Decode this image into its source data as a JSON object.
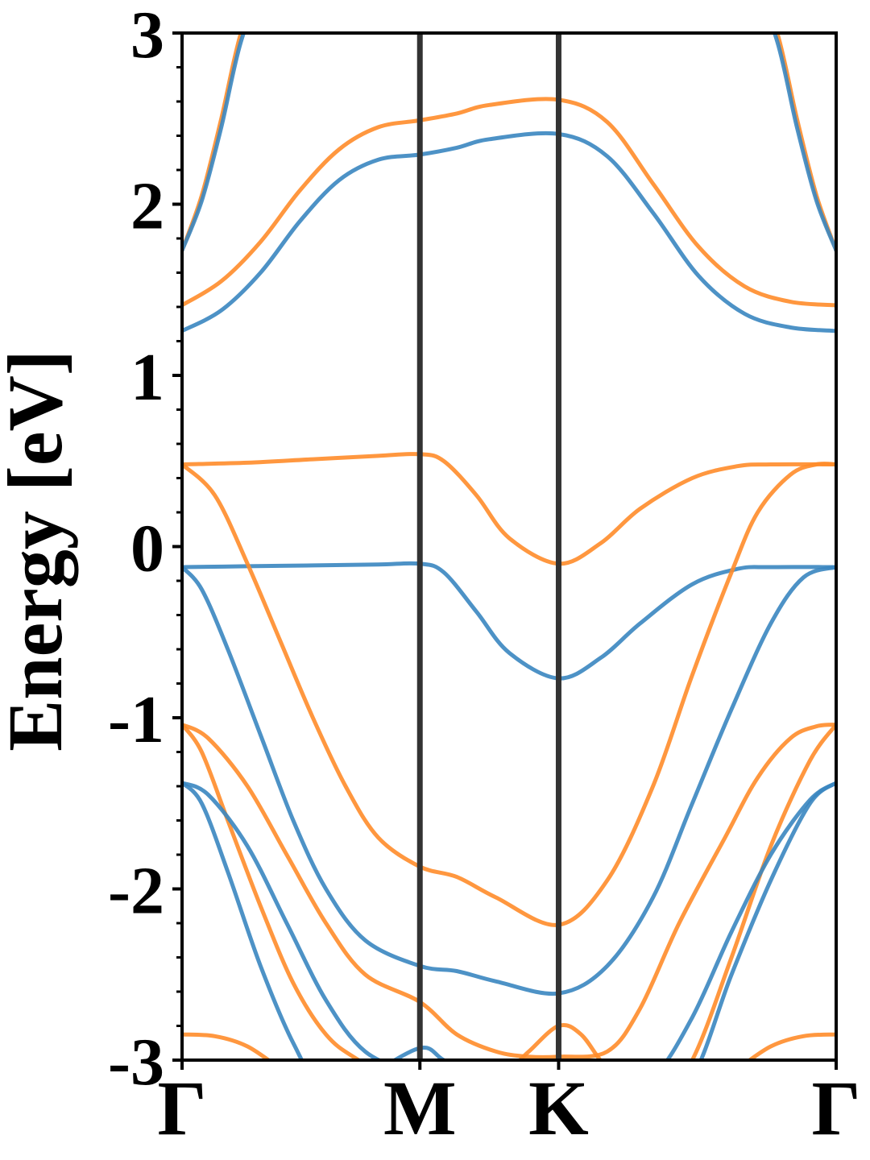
{
  "chart_data": {
    "type": "line",
    "title": "",
    "xlabel": "",
    "ylabel": "Energy [eV]",
    "ylim": [
      -3,
      3
    ],
    "yticks": [
      -3,
      -2,
      -1,
      0,
      1,
      2,
      3
    ],
    "ytick_labels": [
      "-3",
      "-2",
      "-1",
      "0",
      "1",
      "2",
      "3"
    ],
    "xlim": [
      0,
      1
    ],
    "kpoints": [
      {
        "label": "Γ",
        "x": 0.0
      },
      {
        "label": "M",
        "x": 0.3636
      },
      {
        "label": "K",
        "x": 0.5757
      },
      {
        "label": "Γ",
        "x": 1.0
      }
    ],
    "grid": false,
    "legend": "none",
    "colors": {
      "series_a": "#3a86c0",
      "series_b": "#ff8c2a",
      "kline": "#333333"
    },
    "series": [
      {
        "color": "series_b",
        "x": [
          0,
          0.03,
          0.06,
          0.09,
          0.13
        ],
        "y": [
          1.73,
          2.05,
          2.5,
          3.0,
          3.4
        ]
      },
      {
        "color": "series_a",
        "x": [
          0,
          0.03,
          0.06,
          0.09,
          0.13
        ],
        "y": [
          1.73,
          2.02,
          2.45,
          2.95,
          3.35
        ]
      },
      {
        "color": "series_b",
        "x": [
          0.87,
          0.91,
          0.94,
          0.97,
          1.0
        ],
        "y": [
          3.4,
          3.0,
          2.5,
          2.05,
          1.73
        ]
      },
      {
        "color": "series_a",
        "x": [
          0.87,
          0.91,
          0.94,
          0.97,
          1.0
        ],
        "y": [
          3.35,
          2.95,
          2.45,
          2.02,
          1.73
        ]
      },
      {
        "color": "series_b",
        "x": [
          0,
          0.06,
          0.12,
          0.18,
          0.24,
          0.3,
          0.3636,
          0.42,
          0.47,
          0.5757,
          0.65,
          0.72,
          0.79,
          0.86,
          0.93,
          1.0
        ],
        "y": [
          1.41,
          1.55,
          1.78,
          2.08,
          2.32,
          2.45,
          2.49,
          2.53,
          2.58,
          2.61,
          2.48,
          2.12,
          1.75,
          1.52,
          1.43,
          1.41
        ]
      },
      {
        "color": "series_a",
        "x": [
          0,
          0.06,
          0.12,
          0.18,
          0.24,
          0.3,
          0.3636,
          0.42,
          0.47,
          0.5757,
          0.65,
          0.72,
          0.79,
          0.86,
          0.93,
          1.0
        ],
        "y": [
          1.26,
          1.38,
          1.6,
          1.9,
          2.14,
          2.26,
          2.29,
          2.33,
          2.38,
          2.41,
          2.28,
          1.95,
          1.58,
          1.36,
          1.28,
          1.26
        ]
      },
      {
        "color": "series_b",
        "x": [
          0,
          0.1,
          0.2,
          0.3,
          0.3636,
          0.4,
          0.45,
          0.5,
          0.5757,
          0.64,
          0.7,
          0.78,
          0.85,
          0.9,
          1.0
        ],
        "y": [
          0.48,
          0.49,
          0.51,
          0.53,
          0.54,
          0.5,
          0.3,
          0.05,
          -0.1,
          0.02,
          0.22,
          0.4,
          0.47,
          0.48,
          0.48
        ]
      },
      {
        "color": "series_a",
        "x": [
          0,
          0.1,
          0.2,
          0.3,
          0.3636,
          0.4,
          0.45,
          0.5,
          0.5757,
          0.64,
          0.7,
          0.78,
          0.85,
          0.9,
          1.0
        ],
        "y": [
          -0.12,
          -0.115,
          -0.11,
          -0.105,
          -0.1,
          -0.15,
          -0.38,
          -0.62,
          -0.77,
          -0.65,
          -0.45,
          -0.22,
          -0.13,
          -0.12,
          -0.12
        ]
      },
      {
        "color": "series_b",
        "x": [
          0,
          0.05,
          0.1,
          0.15,
          0.2,
          0.25,
          0.3,
          0.3636,
          0.42,
          0.48,
          0.5757,
          0.65,
          0.72,
          0.78,
          0.84,
          0.88,
          0.93,
          0.97,
          1.0
        ],
        "y": [
          0.48,
          0.3,
          -0.1,
          -0.55,
          -1.0,
          -1.4,
          -1.7,
          -1.87,
          -1.93,
          -2.05,
          -2.21,
          -1.95,
          -1.4,
          -0.75,
          -0.15,
          0.2,
          0.42,
          0.48,
          0.48
        ]
      },
      {
        "color": "series_a",
        "x": [
          0,
          0.03,
          0.07,
          0.12,
          0.17,
          0.22,
          0.28,
          0.3636,
          0.42,
          0.48,
          0.5757,
          0.65,
          0.72,
          0.78,
          0.84,
          0.9,
          0.95,
          1.0
        ],
        "y": [
          -0.12,
          -0.25,
          -0.6,
          -1.1,
          -1.6,
          -2.0,
          -2.3,
          -2.45,
          -2.48,
          -2.54,
          -2.61,
          -2.45,
          -2.05,
          -1.5,
          -0.95,
          -0.45,
          -0.18,
          -0.12
        ]
      },
      {
        "color": "series_b",
        "x": [
          0,
          0.04,
          0.1,
          0.16,
          0.22,
          0.28,
          0.3636,
          0.42,
          0.48,
          0.53,
          0.5757,
          0.65,
          0.7,
          0.76,
          0.83,
          0.88,
          0.93,
          0.97,
          1.0
        ],
        "y": [
          -1.04,
          -1.12,
          -1.4,
          -1.8,
          -2.2,
          -2.5,
          -2.66,
          -2.85,
          -2.95,
          -2.98,
          -2.98,
          -2.95,
          -2.7,
          -2.2,
          -1.7,
          -1.35,
          -1.12,
          -1.05,
          -1.04
        ]
      },
      {
        "color": "series_b",
        "x": [
          0,
          0.03,
          0.07,
          0.12,
          0.17,
          0.22,
          0.27,
          0.3636,
          0.4,
          0.45,
          0.5,
          0.53,
          0.5757,
          0.61,
          0.65,
          0.72,
          0.78,
          0.84,
          0.9,
          0.96,
          1.0
        ],
        "y": [
          -1.04,
          -1.2,
          -1.6,
          -2.1,
          -2.55,
          -2.85,
          -3.0,
          -3.2,
          -3.15,
          -3.1,
          -3.05,
          -2.95,
          -2.8,
          -2.85,
          -3.05,
          -3.3,
          -3.0,
          -2.4,
          -1.75,
          -1.25,
          -1.04
        ]
      },
      {
        "color": "series_a",
        "x": [
          0,
          0.04,
          0.1,
          0.16,
          0.22,
          0.28,
          0.3636,
          0.42,
          0.48,
          0.5757,
          0.65,
          0.72,
          0.78,
          0.84,
          0.9,
          0.96,
          1.0
        ],
        "y": [
          -1.38,
          -1.45,
          -1.75,
          -2.2,
          -2.65,
          -2.95,
          -3.1,
          -3.25,
          -3.3,
          -3.3,
          -3.2,
          -3.1,
          -2.75,
          -2.25,
          -1.8,
          -1.48,
          -1.38
        ]
      },
      {
        "color": "series_a",
        "x": [
          0,
          0.03,
          0.07,
          0.12,
          0.17,
          0.22,
          0.28,
          0.3636,
          0.4,
          0.45,
          0.5,
          0.5757,
          0.65,
          0.72,
          0.78,
          0.84,
          0.9,
          0.96,
          1.0
        ],
        "y": [
          -1.38,
          -1.5,
          -1.9,
          -2.45,
          -2.9,
          -3.2,
          -3.1,
          -2.93,
          -3.0,
          -3.1,
          -3.2,
          -3.3,
          -3.25,
          -3.2,
          -3.1,
          -2.5,
          -1.95,
          -1.5,
          -1.38
        ]
      },
      {
        "color": "series_b",
        "x": [
          0,
          0.05,
          0.1,
          0.15
        ],
        "y": [
          -2.85,
          -2.86,
          -2.92,
          -3.05
        ]
      },
      {
        "color": "series_b",
        "x": [
          0.85,
          0.9,
          0.95,
          1.0
        ],
        "y": [
          -3.05,
          -2.92,
          -2.86,
          -2.85
        ]
      }
    ]
  }
}
